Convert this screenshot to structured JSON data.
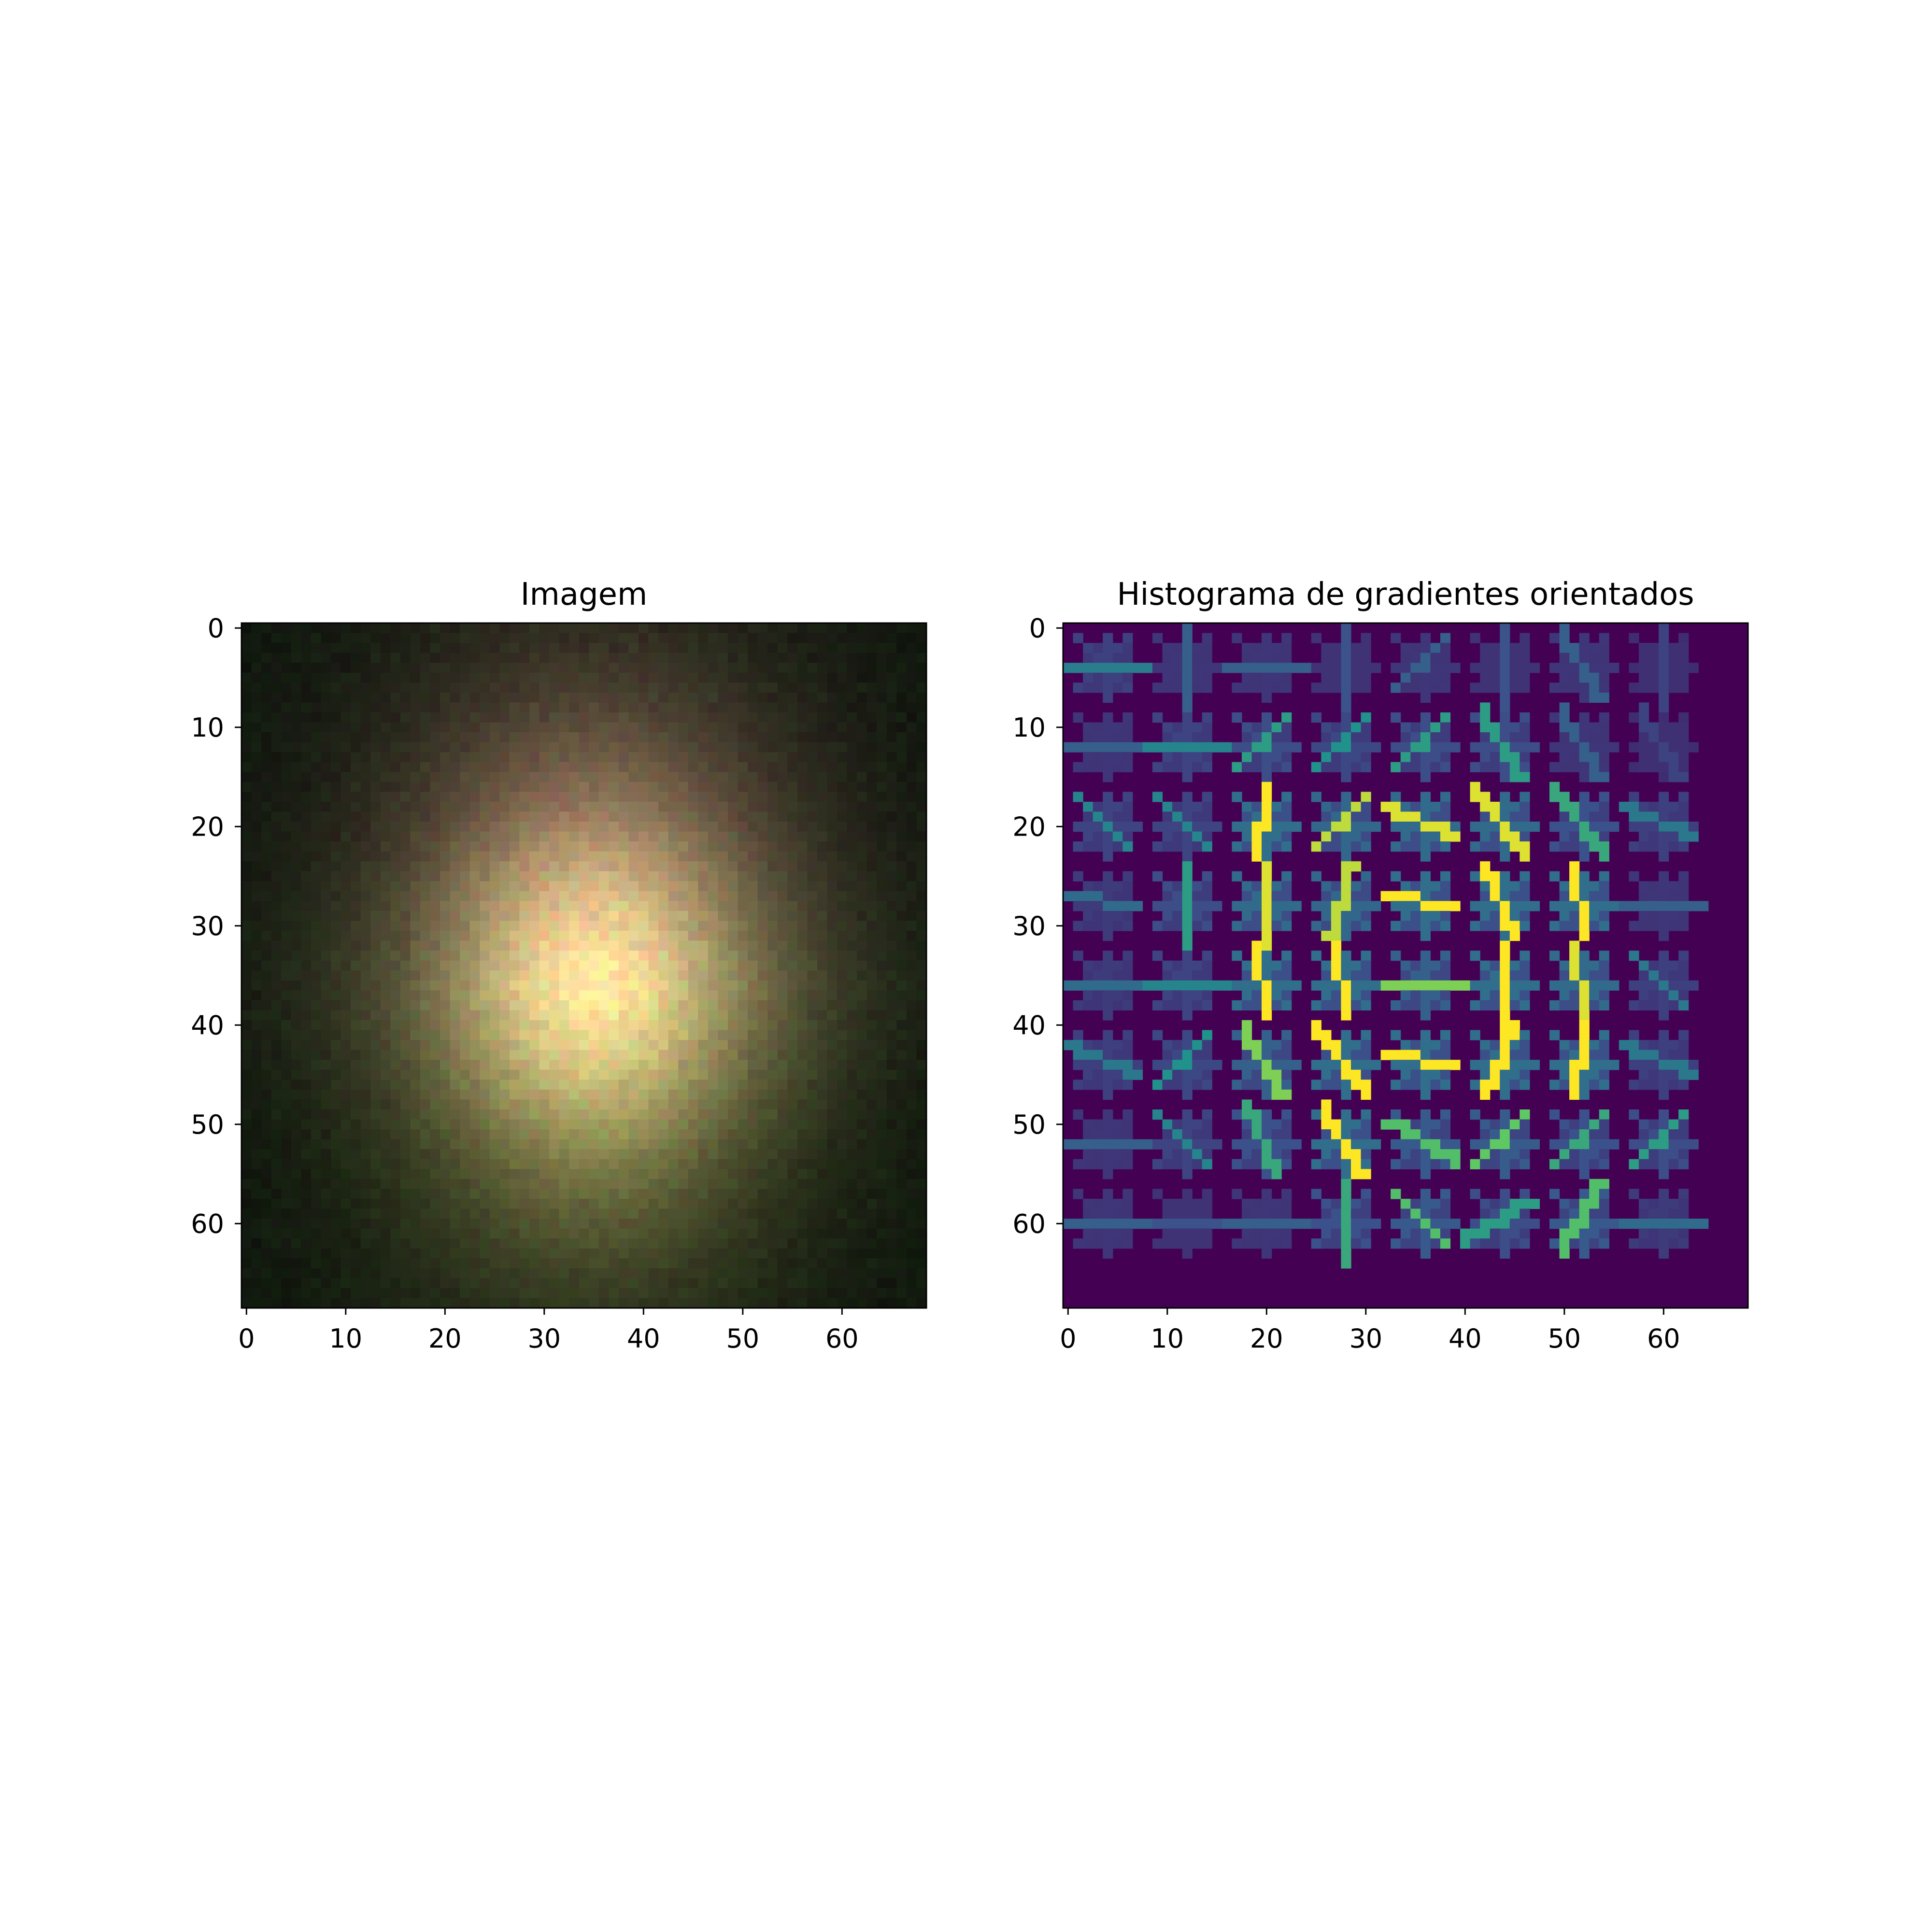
{
  "chart_data": [
    {
      "type": "heatmap",
      "title": "Imagem",
      "xlabel": "",
      "ylabel": "",
      "xlim": [
        -0.5,
        68.5
      ],
      "ylim": [
        68.5,
        -0.5
      ],
      "xticks": [
        0,
        10,
        20,
        30,
        40,
        50,
        60
      ],
      "yticks": [
        0,
        10,
        20,
        30,
        40,
        50,
        60
      ],
      "image": {
        "kind": "rgb",
        "size": [
          69,
          69
        ],
        "description_values": {
          "center": [
            35,
            36
          ],
          "peak_color": "#e8c88a",
          "upper_tint": "#c47f74",
          "lower_tint": "#8e8a45",
          "background": "#0d100c"
        }
      }
    },
    {
      "type": "heatmap",
      "title": "Histograma de gradientes orientados",
      "xlabel": "",
      "ylabel": "",
      "xlim": [
        -0.5,
        68.5
      ],
      "ylim": [
        68.5,
        -0.5
      ],
      "xticks": [
        0,
        10,
        20,
        30,
        40,
        50,
        60
      ],
      "yticks": [
        0,
        10,
        20,
        30,
        40,
        50,
        60
      ],
      "colormap": "viridis",
      "cell_size": 8,
      "grid": [
        8,
        8
      ],
      "background": "#440154",
      "hog_cells": [
        [
          [
            0,
            0.42
          ],
          [
            90,
            0.3
          ],
          [
            0,
            0.3
          ],
          [
            90,
            0.25
          ],
          [
            45,
            0.3
          ],
          [
            90,
            0.25
          ],
          [
            120,
            0.3
          ],
          [
            90,
            0.2
          ]
        ],
        [
          [
            0,
            0.3
          ],
          [
            0,
            0.45
          ],
          [
            45,
            0.55
          ],
          [
            45,
            0.5
          ],
          [
            45,
            0.55
          ],
          [
            120,
            0.55
          ],
          [
            120,
            0.3
          ],
          [
            120,
            0.2
          ]
        ],
        [
          [
            135,
            0.45
          ],
          [
            135,
            0.45
          ],
          [
            80,
            1.0
          ],
          [
            45,
            0.9
          ],
          [
            160,
            0.95
          ],
          [
            130,
            0.95
          ],
          [
            130,
            0.6
          ],
          [
            160,
            0.4
          ]
        ],
        [
          [
            170,
            0.35
          ],
          [
            90,
            0.55
          ],
          [
            90,
            0.95
          ],
          [
            75,
            0.9
          ],
          [
            170,
            1.0
          ],
          [
            110,
            1.0
          ],
          [
            95,
            1.0
          ],
          [
            0,
            0.3
          ]
        ],
        [
          [
            0,
            0.35
          ],
          [
            0,
            0.45
          ],
          [
            100,
            1.0
          ],
          [
            95,
            1.0
          ],
          [
            0,
            0.8
          ],
          [
            90,
            1.0
          ],
          [
            100,
            0.95
          ],
          [
            135,
            0.4
          ]
        ],
        [
          [
            160,
            0.4
          ],
          [
            45,
            0.5
          ],
          [
            120,
            0.8
          ],
          [
            125,
            1.0
          ],
          [
            170,
            1.0
          ],
          [
            65,
            1.0
          ],
          [
            85,
            1.0
          ],
          [
            160,
            0.4
          ]
        ],
        [
          [
            0,
            0.3
          ],
          [
            135,
            0.45
          ],
          [
            110,
            0.6
          ],
          [
            120,
            1.0
          ],
          [
            150,
            0.7
          ],
          [
            45,
            0.75
          ],
          [
            45,
            0.6
          ],
          [
            45,
            0.55
          ]
        ],
        [
          [
            0,
            0.3
          ],
          [
            0,
            0.25
          ],
          [
            0,
            0.3
          ],
          [
            90,
            0.6
          ],
          [
            135,
            0.7
          ],
          [
            30,
            0.55
          ],
          [
            60,
            0.7
          ],
          [
            0,
            0.35
          ]
        ]
      ]
    }
  ]
}
